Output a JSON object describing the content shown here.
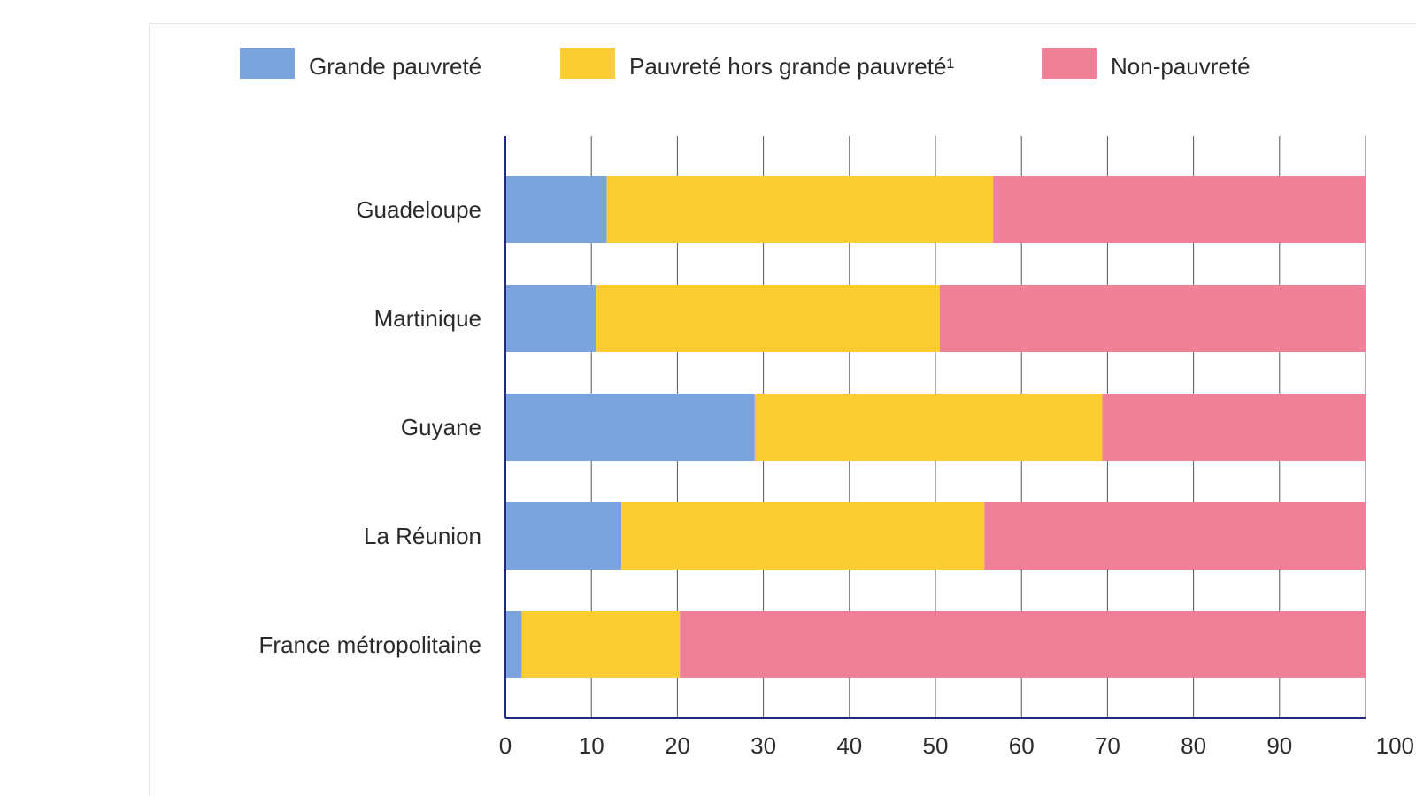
{
  "chart_data": {
    "type": "bar",
    "orientation": "horizontal",
    "stacked": true,
    "categories": [
      "Guadeloupe",
      "Martinique",
      "Guyane",
      "La Réunion",
      "France métropolitaine"
    ],
    "series": [
      {
        "name": "Grande pauvreté",
        "color": "#7ba3dd",
        "values": [
          11.8,
          10.6,
          29.0,
          13.5,
          1.9
        ]
      },
      {
        "name": "Pauvreté hors grande pauvreté¹",
        "color": "#fccc33",
        "values": [
          44.9,
          39.9,
          40.4,
          42.2,
          18.4
        ]
      },
      {
        "name": "Non-pauvreté",
        "color": "#ef8097",
        "values": [
          43.3,
          49.5,
          30.6,
          44.3,
          79.7
        ]
      }
    ],
    "xlim": [
      0,
      100
    ],
    "xticks": [
      0,
      10,
      20,
      30,
      40,
      50,
      60,
      70,
      80,
      90,
      100
    ],
    "grid": true,
    "legend_position": "top",
    "axis_color": "#1f2a80",
    "grid_color": "#555555"
  }
}
